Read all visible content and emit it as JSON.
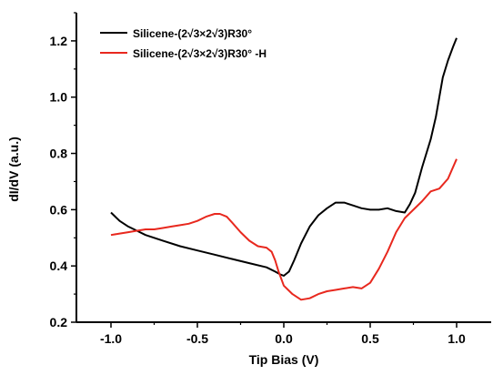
{
  "chart_data": {
    "type": "line",
    "xlabel": "Tip Bias (V)",
    "ylabel": "dI/dV (a.u.)",
    "xlim": [
      -1.2,
      1.2
    ],
    "ylim": [
      0.2,
      1.3
    ],
    "xticks": [
      -1.0,
      -0.5,
      0.0,
      0.5,
      1.0
    ],
    "xtick_labels": [
      "-1.0",
      "-0.5",
      "0.0",
      "0.5",
      "1.0"
    ],
    "yticks": [
      0.2,
      0.4,
      0.6,
      0.8,
      1.0,
      1.2
    ],
    "ytick_labels": [
      "0.2",
      "0.4",
      "0.6",
      "0.8",
      "1.0",
      "1.2"
    ],
    "grid": false,
    "legend_position": "top-left",
    "series": [
      {
        "name": "Silicene-(2√3×2√3)R30°",
        "color": "#000000",
        "x": [
          -1.0,
          -0.95,
          -0.9,
          -0.85,
          -0.8,
          -0.7,
          -0.6,
          -0.5,
          -0.4,
          -0.3,
          -0.2,
          -0.1,
          -0.05,
          -0.02,
          0.0,
          0.03,
          0.06,
          0.1,
          0.15,
          0.2,
          0.25,
          0.3,
          0.35,
          0.4,
          0.45,
          0.5,
          0.55,
          0.6,
          0.65,
          0.7,
          0.73,
          0.76,
          0.8,
          0.85,
          0.88,
          0.9,
          0.92,
          0.95,
          0.98,
          1.0
        ],
        "y": [
          0.59,
          0.56,
          0.54,
          0.525,
          0.51,
          0.49,
          0.47,
          0.455,
          0.44,
          0.425,
          0.41,
          0.395,
          0.38,
          0.37,
          0.365,
          0.38,
          0.42,
          0.48,
          0.54,
          0.58,
          0.605,
          0.625,
          0.625,
          0.615,
          0.605,
          0.6,
          0.6,
          0.605,
          0.595,
          0.59,
          0.62,
          0.66,
          0.75,
          0.85,
          0.93,
          1.0,
          1.07,
          1.13,
          1.18,
          1.21
        ]
      },
      {
        "name": "Silicene-(2√3×2√3)R30° -H",
        "color": "#e8281e",
        "x": [
          -1.0,
          -0.95,
          -0.9,
          -0.85,
          -0.8,
          -0.75,
          -0.7,
          -0.65,
          -0.6,
          -0.55,
          -0.5,
          -0.45,
          -0.4,
          -0.37,
          -0.33,
          -0.3,
          -0.25,
          -0.2,
          -0.15,
          -0.1,
          -0.07,
          -0.05,
          -0.03,
          0.0,
          0.05,
          0.1,
          0.15,
          0.2,
          0.25,
          0.3,
          0.35,
          0.4,
          0.45,
          0.5,
          0.55,
          0.6,
          0.65,
          0.7,
          0.75,
          0.8,
          0.85,
          0.9,
          0.95,
          1.0
        ],
        "y": [
          0.51,
          0.515,
          0.52,
          0.525,
          0.53,
          0.53,
          0.535,
          0.54,
          0.545,
          0.55,
          0.56,
          0.575,
          0.585,
          0.585,
          0.575,
          0.555,
          0.52,
          0.49,
          0.47,
          0.465,
          0.45,
          0.42,
          0.38,
          0.33,
          0.3,
          0.28,
          0.285,
          0.3,
          0.31,
          0.315,
          0.32,
          0.325,
          0.32,
          0.34,
          0.39,
          0.45,
          0.52,
          0.57,
          0.6,
          0.63,
          0.665,
          0.675,
          0.71,
          0.78
        ]
      }
    ]
  }
}
